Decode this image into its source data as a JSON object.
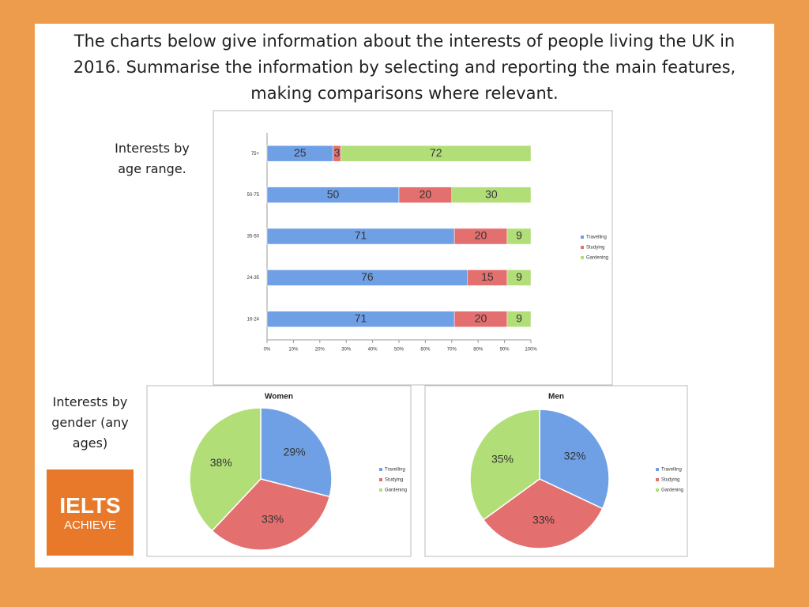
{
  "prompt": "The charts below give information about the interests of people living the UK in 2016. Summarise the information by selecting and reporting the main features, making comparisons where relevant.",
  "captions": [
    "Interests by age range.",
    "Interests by gender (any ages)"
  ],
  "logo": {
    "line1": "IELTS",
    "line2": "ACHIEVE"
  },
  "chart_data": [
    {
      "type": "bar",
      "stacked": true,
      "orientation": "horizontal",
      "categories": [
        "16-24",
        "24-35",
        "35-50",
        "50-75",
        "75+"
      ],
      "series": [
        {
          "name": "Travelling",
          "color": "#6fa0e6",
          "values": [
            71,
            76,
            71,
            50,
            25
          ]
        },
        {
          "name": "Studying",
          "color": "#e46f6f",
          "values": [
            20,
            15,
            20,
            20,
            3
          ]
        },
        {
          "name": "Gardening",
          "color": "#b2de78",
          "values": [
            9,
            9,
            9,
            30,
            72
          ]
        }
      ],
      "xlim": [
        0,
        100
      ],
      "xticks": [
        {
          "value": 0,
          "label": "0%"
        },
        {
          "value": 10,
          "label": "10%"
        },
        {
          "value": 20,
          "label": "20%"
        },
        {
          "value": 30,
          "label": "30%"
        },
        {
          "value": 40,
          "label": "40%"
        },
        {
          "value": 50,
          "label": "50%"
        },
        {
          "value": 60,
          "label": "60%"
        },
        {
          "value": 70,
          "label": "70%"
        },
        {
          "value": 80,
          "label": "80%"
        },
        {
          "value": 90,
          "label": "90%"
        },
        {
          "value": 100,
          "label": "100%"
        }
      ],
      "legend": "right"
    },
    {
      "type": "pie",
      "title": "Women",
      "categories": [
        "Travelling",
        "Studying",
        "Gardening"
      ],
      "values": [
        29,
        33,
        38
      ],
      "value_labels": [
        "29%",
        "33%",
        "38%"
      ],
      "colors": [
        "#6fa0e6",
        "#e46f6f",
        "#b2de78"
      ],
      "legend": "right"
    },
    {
      "type": "pie",
      "title": "Men",
      "categories": [
        "Travelling",
        "Studying",
        "Gardening"
      ],
      "values": [
        32,
        33,
        35
      ],
      "value_labels": [
        "32%",
        "33%",
        "35%"
      ],
      "colors": [
        "#6fa0e6",
        "#e46f6f",
        "#b2de78"
      ],
      "legend": "right"
    }
  ]
}
